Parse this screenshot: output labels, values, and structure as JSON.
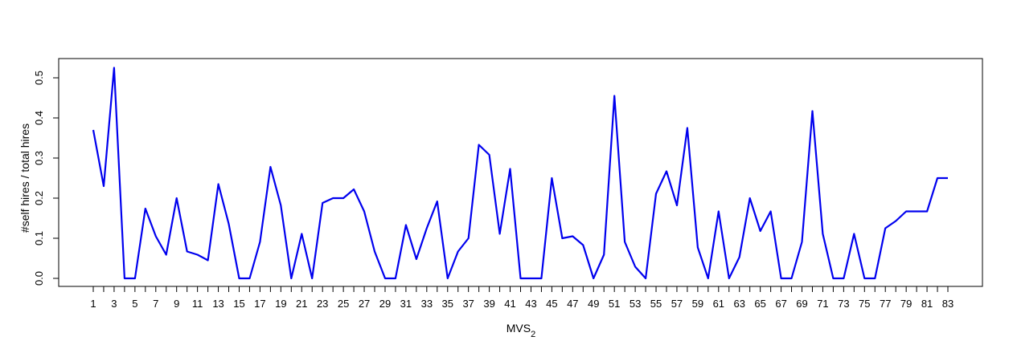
{
  "chart_data": {
    "type": "line",
    "title": "",
    "xlabel": "MVS",
    "xlabel_subscript": "2",
    "ylabel": "#self hires / total hires",
    "x": [
      1,
      2,
      3,
      4,
      5,
      6,
      7,
      8,
      9,
      10,
      11,
      12,
      13,
      14,
      15,
      16,
      17,
      18,
      19,
      20,
      21,
      22,
      23,
      24,
      25,
      26,
      27,
      28,
      29,
      30,
      31,
      32,
      33,
      34,
      35,
      36,
      37,
      38,
      39,
      40,
      41,
      42,
      43,
      44,
      45,
      46,
      47,
      48,
      49,
      50,
      51,
      52,
      53,
      54,
      55,
      56,
      57,
      58,
      59,
      60,
      61,
      62,
      63,
      64,
      65,
      66,
      67,
      68,
      69,
      70,
      71,
      72,
      73,
      74,
      75,
      76,
      77,
      78,
      79,
      80,
      81,
      82,
      83
    ],
    "x_tick_labels": [
      "1",
      "3",
      "5",
      "7",
      "9",
      "11",
      "13",
      "15",
      "17",
      "19",
      "21",
      "23",
      "25",
      "27",
      "29",
      "31",
      "33",
      "35",
      "37",
      "39",
      "41",
      "43",
      "45",
      "47",
      "49",
      "51",
      "53",
      "55",
      "57",
      "59",
      "61",
      "63",
      "65",
      "67",
      "69",
      "71",
      "73",
      "75",
      "77",
      "79",
      "81",
      "83"
    ],
    "y_tick_labels": [
      "0.0",
      "0.1",
      "0.2",
      "0.3",
      "0.4",
      "0.5"
    ],
    "ylim": [
      0,
      0.5
    ],
    "grid": false,
    "series": [
      {
        "color": "#0000ee",
        "values": [
          0.37,
          0.23,
          0.525,
          0.0,
          0.0,
          0.174,
          0.105,
          0.059,
          0.2,
          0.067,
          0.059,
          0.045,
          0.235,
          0.136,
          0.0,
          0.0,
          0.091,
          0.278,
          0.182,
          0.0,
          0.111,
          0.0,
          0.188,
          0.2,
          0.2,
          0.222,
          0.167,
          0.067,
          0.0,
          0.0,
          0.133,
          0.048,
          0.125,
          0.192,
          0.0,
          0.067,
          0.1,
          0.333,
          0.308,
          0.111,
          0.273,
          0.0,
          0.0,
          0.0,
          0.25,
          0.1,
          0.105,
          0.083,
          0.0,
          0.059,
          0.455,
          0.091,
          0.029,
          0.0,
          0.211,
          0.267,
          0.182,
          0.375,
          0.077,
          0.0,
          0.167,
          0.0,
          0.053,
          0.2,
          0.118,
          0.167,
          0.0,
          0.0,
          0.091,
          0.417,
          0.111,
          0.0,
          0.0,
          0.111,
          0.0,
          0.0,
          0.125,
          0.143,
          0.167,
          0.167,
          0.167,
          0.25,
          0.25
        ]
      }
    ]
  }
}
